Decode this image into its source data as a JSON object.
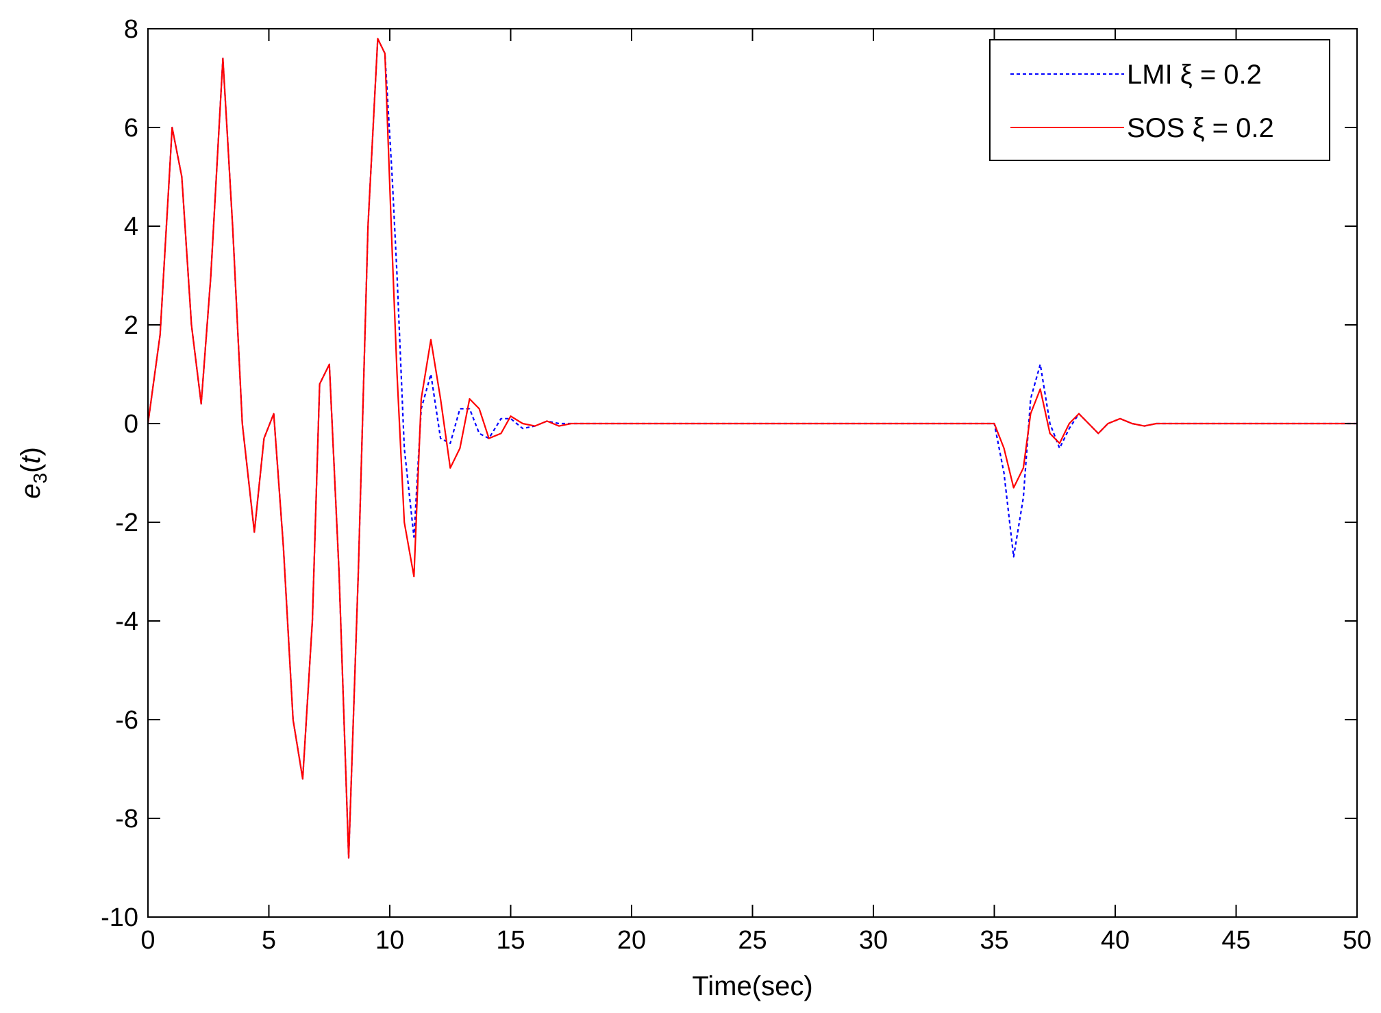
{
  "chart_data": {
    "type": "line",
    "xlabel": "Time(sec)",
    "ylabel": {
      "base": "e",
      "sub": "3",
      "rest_open": "(",
      "var": "t",
      "rest_close": ")"
    },
    "xlim": [
      0,
      50
    ],
    "ylim": [
      -10,
      8
    ],
    "xticks": [
      0,
      5,
      10,
      15,
      20,
      25,
      30,
      35,
      40,
      45,
      50
    ],
    "yticks": [
      -10,
      -8,
      -6,
      -4,
      -2,
      0,
      2,
      4,
      6,
      8
    ],
    "grid": false,
    "legend_position": "top-right",
    "series": [
      {
        "name": "LMI  ξ = 0.2",
        "color": "#0000ff",
        "style": "dotted",
        "x": [
          0,
          0.5,
          1.0,
          1.4,
          1.8,
          2.2,
          2.6,
          3.1,
          3.5,
          3.9,
          4.4,
          4.8,
          5.2,
          5.6,
          6.0,
          6.4,
          6.8,
          7.1,
          7.5,
          7.9,
          8.3,
          8.7,
          9.1,
          9.5,
          9.8,
          10.1,
          10.3,
          10.6,
          11.0,
          11.3,
          11.7,
          12.1,
          12.5,
          12.9,
          13.3,
          13.7,
          14.1,
          14.6,
          15.0,
          15.5,
          16.0,
          16.5,
          17.0,
          17.5,
          18.0,
          20,
          25,
          30,
          35.0,
          35.4,
          35.8,
          36.2,
          36.5,
          36.9,
          37.3,
          37.7,
          38.1,
          38.5,
          38.9,
          39.3,
          39.7,
          40.2,
          40.7,
          41.2,
          41.7,
          42.5,
          43,
          45,
          50
        ],
        "y": [
          0,
          1.8,
          6.0,
          5.0,
          2.0,
          0.4,
          3.0,
          7.4,
          4.0,
          0,
          -2.2,
          -0.3,
          0.2,
          -2.5,
          -6.0,
          -7.2,
          -4.0,
          0.8,
          1.2,
          -3.0,
          -8.8,
          -3.0,
          4.0,
          7.8,
          7.5,
          5.0,
          3.0,
          -0.5,
          -2.3,
          0.3,
          1.0,
          -0.3,
          -0.4,
          0.3,
          0.3,
          -0.2,
          -0.3,
          0.1,
          0.1,
          -0.1,
          -0.05,
          0.05,
          0.0,
          0.0,
          0,
          0,
          0,
          0,
          0,
          -1.0,
          -2.7,
          -1.5,
          0.5,
          1.2,
          0.0,
          -0.5,
          -0.1,
          0.2,
          0.0,
          -0.2,
          0.0,
          0.1,
          0.0,
          -0.05,
          0,
          0,
          0,
          0,
          0
        ]
      },
      {
        "name": "SOS  ξ = 0.2",
        "color": "#ff0000",
        "style": "solid",
        "x": [
          0,
          0.5,
          1.0,
          1.4,
          1.8,
          2.2,
          2.6,
          3.1,
          3.5,
          3.9,
          4.4,
          4.8,
          5.2,
          5.6,
          6.0,
          6.4,
          6.8,
          7.1,
          7.5,
          7.9,
          8.3,
          8.7,
          9.1,
          9.5,
          9.8,
          10.1,
          10.3,
          10.6,
          11.0,
          11.3,
          11.7,
          12.1,
          12.5,
          12.9,
          13.3,
          13.7,
          14.1,
          14.6,
          15.0,
          15.5,
          16.0,
          16.5,
          17.0,
          17.5,
          18.0,
          20,
          25,
          30,
          35.0,
          35.4,
          35.8,
          36.2,
          36.5,
          36.9,
          37.3,
          37.7,
          38.1,
          38.5,
          38.9,
          39.3,
          39.7,
          40.2,
          40.7,
          41.2,
          41.7,
          42.5,
          43,
          45,
          50
        ],
        "y": [
          0,
          1.8,
          6.0,
          5.0,
          2.0,
          0.4,
          3.0,
          7.4,
          4.0,
          0,
          -2.2,
          -0.3,
          0.2,
          -2.5,
          -6.0,
          -7.2,
          -4.0,
          0.8,
          1.2,
          -3.0,
          -8.8,
          -3.0,
          4.0,
          7.8,
          7.5,
          3.5,
          1.0,
          -2.0,
          -3.1,
          0.5,
          1.7,
          0.5,
          -0.9,
          -0.5,
          0.5,
          0.3,
          -0.3,
          -0.2,
          0.15,
          0.0,
          -0.05,
          0.05,
          -0.05,
          0.0,
          0,
          0,
          0,
          0,
          0,
          -0.5,
          -1.3,
          -0.9,
          0.2,
          0.7,
          -0.2,
          -0.4,
          0.0,
          0.2,
          0.0,
          -0.2,
          0.0,
          0.1,
          0.0,
          -0.05,
          0,
          0,
          0,
          0,
          0
        ]
      }
    ]
  },
  "colors": {
    "axis": "#000000",
    "background": "#ffffff"
  }
}
